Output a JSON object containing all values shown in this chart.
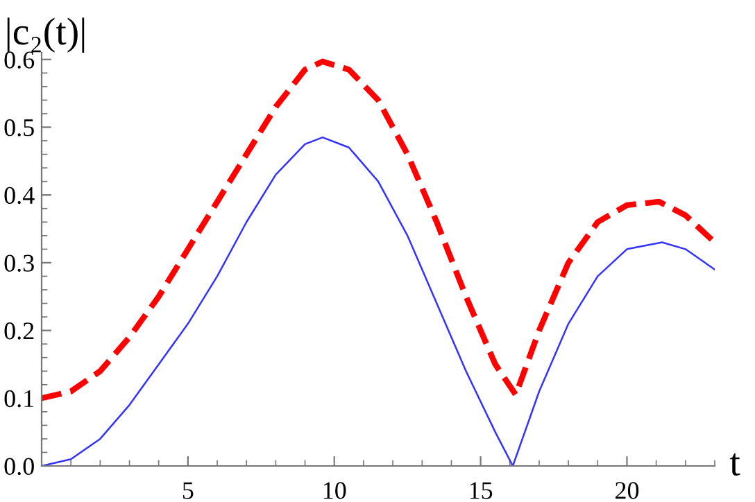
{
  "chart_data": {
    "type": "line",
    "xlabel": "t",
    "ylabel": "|c₂(t)|",
    "xlim": [
      0,
      23
    ],
    "ylim": [
      0,
      0.61
    ],
    "xticks": [
      5,
      10,
      15,
      20
    ],
    "yticks": [
      {
        "value": 0,
        "label": "0.0"
      },
      0.1,
      0.2,
      0.3,
      0.4,
      0.5,
      0.6
    ],
    "grid": false,
    "legend": false,
    "series": [
      {
        "color": "#3333ff",
        "line_style": "solid",
        "x": [
          0,
          1,
          2,
          3,
          4,
          5,
          6,
          7,
          8,
          9,
          9.6,
          10.5,
          11.5,
          12.5,
          13.5,
          14.5,
          15.5,
          16.1,
          17,
          18,
          19,
          20,
          21.2,
          22,
          23
        ],
        "values": [
          0,
          0.01,
          0.04,
          0.09,
          0.15,
          0.21,
          0.28,
          0.36,
          0.43,
          0.475,
          0.485,
          0.47,
          0.42,
          0.34,
          0.24,
          0.14,
          0.05,
          0,
          0.11,
          0.21,
          0.28,
          0.32,
          0.33,
          0.32,
          0.29
        ]
      },
      {
        "color": "#ff0000",
        "line_style": "dashed",
        "x": [
          0,
          1,
          2,
          3,
          4,
          5,
          6,
          7,
          8,
          9,
          9.6,
          10.5,
          11.5,
          12.5,
          13.5,
          14.5,
          15.5,
          16.2,
          17,
          18,
          19,
          20,
          21.1,
          22,
          23
        ],
        "values": [
          0.1,
          0.11,
          0.14,
          0.19,
          0.25,
          0.32,
          0.39,
          0.46,
          0.53,
          0.585,
          0.597,
          0.585,
          0.54,
          0.46,
          0.36,
          0.25,
          0.15,
          0.105,
          0.2,
          0.3,
          0.36,
          0.385,
          0.39,
          0.37,
          0.33
        ]
      }
    ]
  }
}
